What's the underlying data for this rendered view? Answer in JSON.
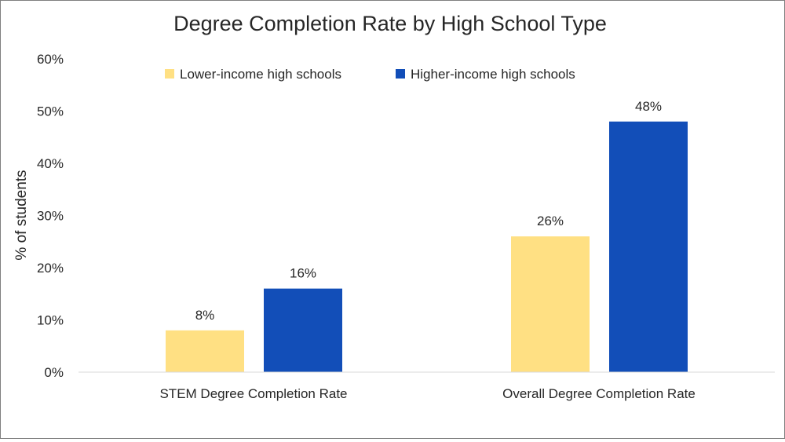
{
  "chart_data": {
    "type": "bar",
    "title": "Degree Completion Rate by High School Type",
    "xlabel": "",
    "ylabel": "% of students",
    "ylim": [
      0,
      60
    ],
    "yticks": [
      0,
      10,
      20,
      30,
      40,
      50,
      60
    ],
    "ytick_labels": [
      "0%",
      "10%",
      "20%",
      "30%",
      "40%",
      "50%",
      "60%"
    ],
    "categories": [
      "STEM Degree Completion Rate",
      "Overall Degree Completion Rate"
    ],
    "series": [
      {
        "name": "Lower-income high schools",
        "values": [
          8,
          26
        ],
        "data_labels": [
          "8%",
          "26%"
        ],
        "color": "#FFE083"
      },
      {
        "name": "Higher-income high schools",
        "values": [
          16,
          48
        ],
        "data_labels": [
          "16%",
          "48%"
        ],
        "color": "#124EB8"
      }
    ],
    "grid": false,
    "legend_position": "top"
  }
}
